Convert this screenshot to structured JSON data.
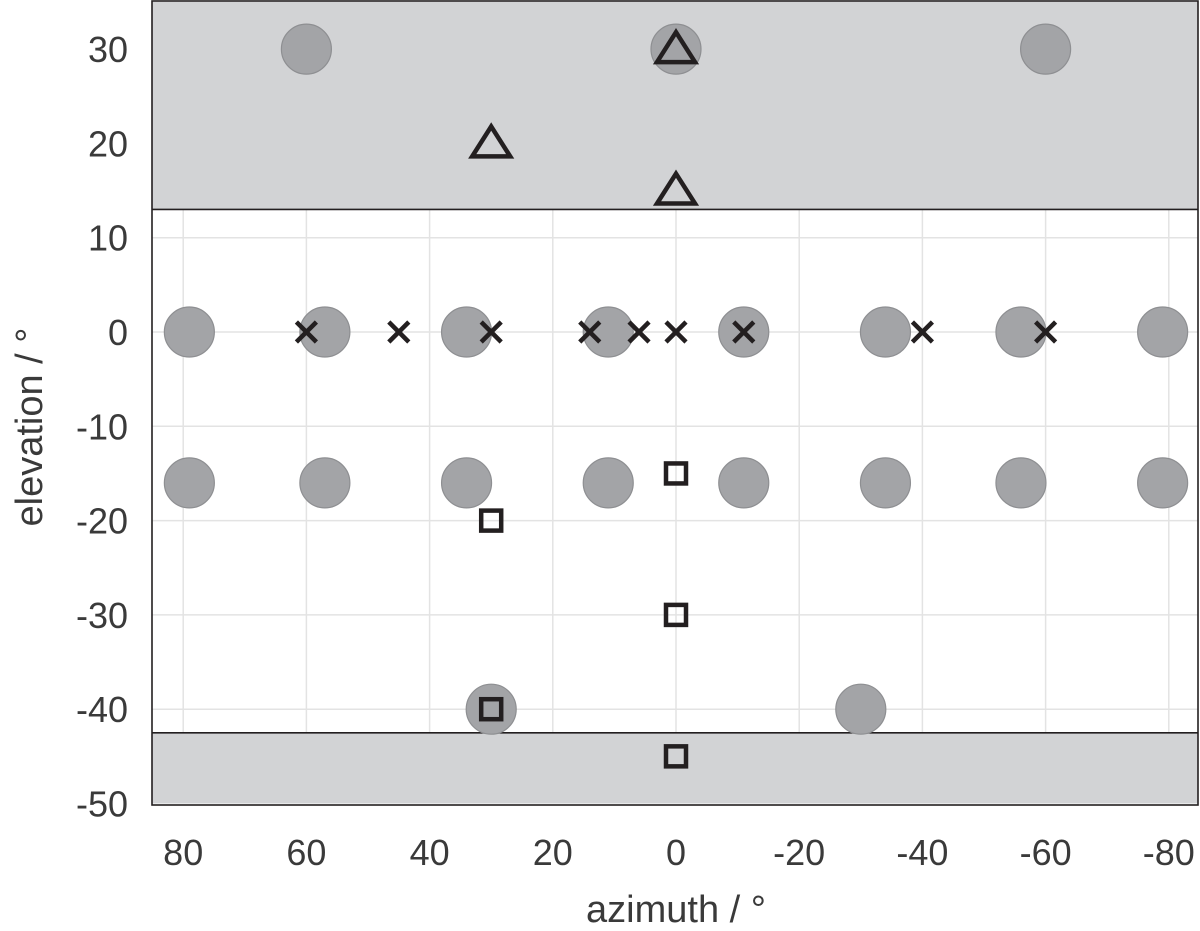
{
  "chart_data": {
    "type": "scatter",
    "xlabel": "azimuth / °",
    "ylabel": "elevation / °",
    "xlim": [
      85,
      -85
    ],
    "ylim": [
      -50,
      35
    ],
    "x_reversed": true,
    "grid": true,
    "x_ticks": [
      80,
      60,
      40,
      20,
      0,
      -20,
      -40,
      -60,
      -80
    ],
    "y_ticks": [
      30,
      20,
      10,
      0,
      -10,
      -20,
      -30,
      -40,
      -50
    ],
    "x_tick_labels": [
      "80",
      "60",
      "40",
      "20",
      "0",
      "-20",
      "-40",
      "-60",
      "-80"
    ],
    "y_tick_labels": [
      "30",
      "20",
      "10",
      "0",
      "-10",
      "-20",
      "-30",
      "-40",
      "-50"
    ],
    "shaded_regions": [
      {
        "y": [
          13,
          35
        ],
        "color": "#d2d3d5"
      },
      {
        "y": [
          -50,
          -42.5
        ],
        "color": "#d2d3d5"
      }
    ],
    "series": [
      {
        "marker": "circle",
        "color": "#a3a4a7",
        "points": [
          [
            60,
            30
          ],
          [
            0,
            30
          ],
          [
            -60,
            30
          ],
          [
            79,
            0
          ],
          [
            57,
            0
          ],
          [
            34,
            0
          ],
          [
            11,
            0
          ],
          [
            -11,
            0
          ],
          [
            -34,
            0
          ],
          [
            -56,
            0
          ],
          [
            -79,
            0
          ],
          [
            79,
            -16
          ],
          [
            57,
            -16
          ],
          [
            34,
            -16
          ],
          [
            11,
            -16
          ],
          [
            -11,
            -16
          ],
          [
            -34,
            -16
          ],
          [
            -56,
            -16
          ],
          [
            -79,
            -16
          ],
          [
            30,
            -40
          ],
          [
            -30,
            -40
          ]
        ]
      },
      {
        "marker": "triangle",
        "color": "#231f20",
        "points": [
          [
            0,
            30
          ],
          [
            30,
            20
          ],
          [
            0,
            15
          ]
        ]
      },
      {
        "marker": "x",
        "color": "#231f20",
        "points": [
          [
            60,
            0
          ],
          [
            45,
            0
          ],
          [
            30,
            0
          ],
          [
            14,
            0
          ],
          [
            6,
            0
          ],
          [
            0,
            0
          ],
          [
            -11,
            0
          ],
          [
            -40,
            0
          ],
          [
            -60,
            0
          ]
        ]
      },
      {
        "marker": "square",
        "color": "#231f20",
        "points": [
          [
            0,
            -15
          ],
          [
            30,
            -20
          ],
          [
            0,
            -30
          ],
          [
            30,
            -40
          ],
          [
            0,
            -45
          ]
        ]
      }
    ],
    "colors": {
      "grid": "#e3e3e3",
      "axis": "#231f20",
      "text": "#3a3a3a"
    }
  }
}
